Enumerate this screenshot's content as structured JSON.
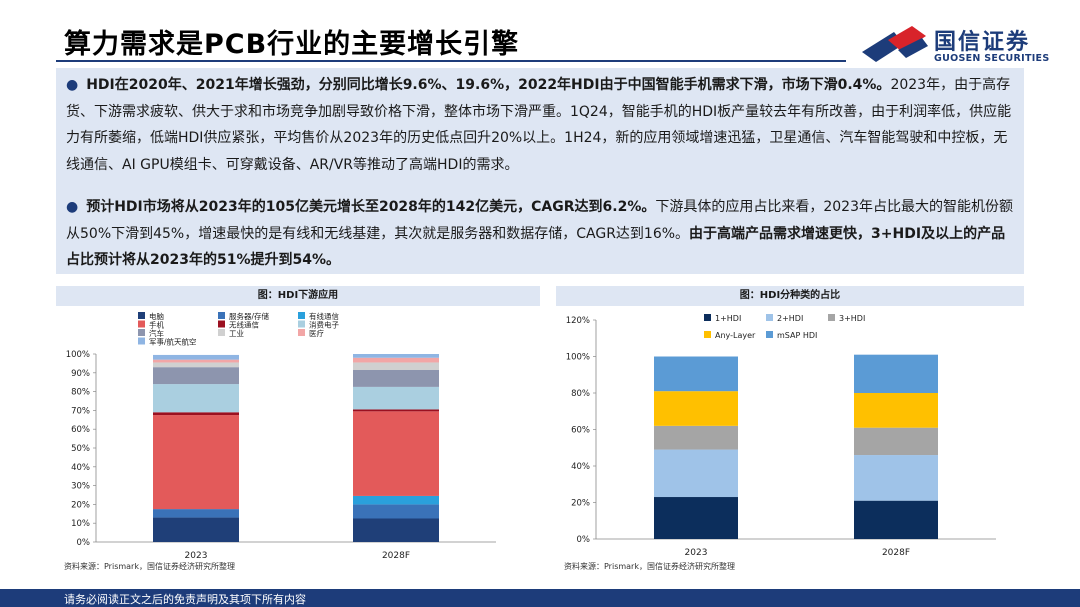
{
  "header": {
    "title": "算力需求是PCB行业的主要增长引擎",
    "logo_cn": "国信证券",
    "logo_en": "GUOSEN SECURITIES"
  },
  "body": {
    "p1_bold": "HDI在2020年、2021年增长强劲，分别同比增长9.6%、19.6%，2022年HDI由于中国智能手机需求下滑，市场下滑0.4%。",
    "p1_rest": "2023年，由于高存货、下游需求疲软、供大于求和市场竞争加剧导致价格下滑，整体市场下滑严重。1Q24，智能手机的HDI板产量较去年有所改善，由于利润率低，供应能力有所萎缩，低端HDI供应紧张，平均售价从2023年的历史低点回升20%以上。1H24，新的应用领域增速迅猛，卫星通信、汽车智能驾驶和中控板，无线通信、AI GPU模组卡、可穿戴设备、AR/VR等推动了高端HDI的需求。",
    "p2_bold": "预计HDI市场将从2023年的105亿美元增长至2028年的142亿美元，CAGR达到6.2%。",
    "p2_mid": "下游具体的应用占比来看，2023年占比最大的智能机份额从50%下滑到45%，增速最快的是有线和无线基建，其次就是服务器和数据存储，CAGR达到16%。",
    "p2_bold2": "由于高端产品需求增速更快，3+HDI及以上的产品占比预计将从2023年的51%提升到54%。"
  },
  "left_panel": {
    "title": "图：HDI下游应用",
    "source": "资料来源：Prismark，国信证券经济研究所整理"
  },
  "right_panel": {
    "title": "图：HDI分种类的占比",
    "source": "资料来源：Prismark，国信证券经济研究所整理"
  },
  "footer": {
    "text": "请务必阅读正文之后的免责声明及其项下所有内容"
  },
  "colors": {
    "brand": "#1d3c7a",
    "accent_red": "#d8232a"
  },
  "chart_data": [
    {
      "type": "bar",
      "stacked": true,
      "title": "图：HDI下游应用",
      "categories": [
        "2023",
        "2028F"
      ],
      "ylim": [
        0,
        100
      ],
      "yticks": [
        "0%",
        "10%",
        "20%",
        "30%",
        "40%",
        "50%",
        "60%",
        "70%",
        "80%",
        "90%",
        "100%"
      ],
      "legend_position": "top",
      "series": [
        {
          "name": "电脑",
          "color": "#1f3f78",
          "values": [
            13,
            12.5
          ]
        },
        {
          "name": "服务器/存储",
          "color": "#3a72b8",
          "values": [
            4.5,
            7.5
          ]
        },
        {
          "name": "有线通信",
          "color": "#2aa0dc",
          "values": [
            0,
            4.5
          ]
        },
        {
          "name": "手机",
          "color": "#e35a5a",
          "values": [
            50,
            45
          ]
        },
        {
          "name": "无线通信",
          "color": "#9b1020",
          "values": [
            1.5,
            1
          ]
        },
        {
          "name": "消费电子",
          "color": "#aacfe0",
          "values": [
            15,
            12
          ]
        },
        {
          "name": "汽车",
          "color": "#8d95ae",
          "values": [
            9,
            9
          ]
        },
        {
          "name": "工业",
          "color": "#d0d0d0",
          "values": [
            2.5,
            4
          ]
        },
        {
          "name": "医疗",
          "color": "#f2a6a6",
          "values": [
            1.5,
            2.5
          ]
        },
        {
          "name": "军事/航天航空",
          "color": "#8fb5e3",
          "values": [
            2.5,
            2
          ]
        }
      ]
    },
    {
      "type": "bar",
      "stacked": true,
      "title": "图：HDI分种类的占比",
      "categories": [
        "2023",
        "2028F"
      ],
      "ylim": [
        0,
        120
      ],
      "yticks": [
        "0%",
        "20%",
        "40%",
        "60%",
        "80%",
        "100%",
        "120%"
      ],
      "legend_position": "top",
      "series": [
        {
          "name": "1+HDI",
          "color": "#0c2e5c",
          "values": [
            23,
            21
          ]
        },
        {
          "name": "2+HDI",
          "color": "#9fc3e8",
          "values": [
            26,
            25
          ]
        },
        {
          "name": "3+HDI",
          "color": "#a5a5a5",
          "values": [
            13,
            15
          ]
        },
        {
          "name": "Any-Layer",
          "color": "#ffc000",
          "values": [
            19,
            19
          ]
        },
        {
          "name": "mSAP HDI",
          "color": "#5b9bd5",
          "values": [
            19,
            21
          ]
        }
      ]
    }
  ]
}
